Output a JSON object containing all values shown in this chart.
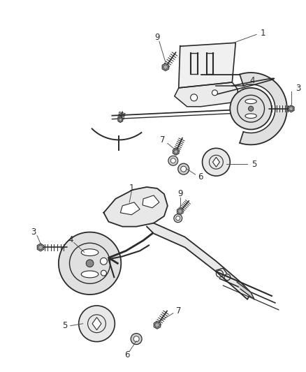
{
  "bg_color": "#ffffff",
  "line_color": "#2a2a2a",
  "label_color": "#2a2a2a",
  "label_fontsize": 8.5,
  "fig_width": 4.39,
  "fig_height": 5.33,
  "dpi": 100
}
